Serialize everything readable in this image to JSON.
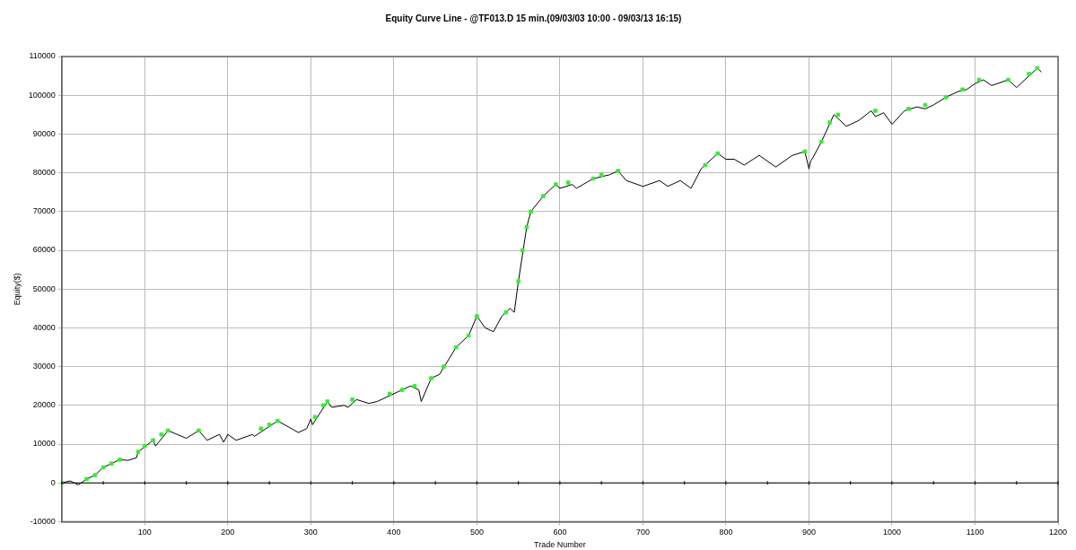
{
  "chart_data": {
    "type": "line",
    "title": "Equity Curve Line - @TF013.D 15 min.(09/03/03 10:00 - 09/03/13 16:15)",
    "xlabel": "Trade Number",
    "ylabel": "Equity($)",
    "xlim": [
      0,
      1200
    ],
    "xticks": [
      100,
      200,
      300,
      400,
      500,
      600,
      700,
      800,
      900,
      1000,
      1100,
      1200
    ],
    "ylim": [
      -10000,
      110000
    ],
    "yticks": [
      -10000,
      0,
      10000,
      20000,
      30000,
      40000,
      50000,
      60000,
      70000,
      80000,
      90000,
      100000,
      110000
    ],
    "grid": true,
    "legend": false,
    "ref_lines": [
      {
        "axis": "y",
        "value": 0,
        "color": "#000000"
      }
    ],
    "series": [
      {
        "color": "#000000",
        "marker": "none",
        "line_style": "solid",
        "x": [
          0,
          10,
          20,
          30,
          40,
          50,
          70,
          80,
          90,
          92,
          110,
          113,
          128,
          150,
          165,
          175,
          190,
          195,
          200,
          210,
          230,
          232,
          260,
          285,
          295,
          300,
          302,
          320,
          325,
          340,
          345,
          355,
          370,
          380,
          400,
          420,
          430,
          433,
          445,
          455,
          475,
          490,
          500,
          510,
          520,
          530,
          540,
          545,
          550,
          560,
          565,
          580,
          595,
          600,
          615,
          620,
          640,
          660,
          670,
          680,
          700,
          720,
          730,
          745,
          758,
          770,
          790,
          800,
          810,
          822,
          840,
          860,
          880,
          895,
          900,
          902,
          905,
          915,
          930,
          945,
          960,
          975,
          980,
          990,
          1000,
          1015,
          1030,
          1040,
          1050,
          1065,
          1080,
          1090,
          1100,
          1110,
          1120,
          1140,
          1145,
          1150,
          1160,
          1175,
          1180
        ],
        "values": [
          0,
          500,
          -500,
          1000,
          2000,
          4000,
          6000,
          5800,
          6500,
          8000,
          11000,
          9500,
          13500,
          11500,
          13500,
          11000,
          12500,
          10500,
          12500,
          11000,
          12500,
          12000,
          16000,
          13000,
          14000,
          16500,
          15000,
          21000,
          19500,
          20000,
          19500,
          21500,
          20500,
          21000,
          23000,
          25000,
          24000,
          21000,
          27000,
          28000,
          35000,
          38000,
          43000,
          40000,
          39000,
          43000,
          45000,
          44000,
          52000,
          66000,
          70000,
          74000,
          77000,
          76000,
          77000,
          76000,
          78500,
          79500,
          80500,
          78000,
          76500,
          78000,
          76500,
          78000,
          76000,
          81000,
          85000,
          83500,
          83500,
          82000,
          84500,
          81500,
          84500,
          85500,
          81000,
          83000,
          84000,
          88000,
          95000,
          92000,
          93500,
          96000,
          94500,
          95500,
          92500,
          96000,
          97000,
          96500,
          97500,
          99500,
          101000,
          101500,
          103000,
          104000,
          102500,
          104000,
          103000,
          102000,
          104000,
          107000,
          106000
        ]
      },
      {
        "type": "scatter",
        "color": "#33ee33",
        "marker": "square",
        "x": [
          0,
          30,
          40,
          50,
          60,
          70,
          92,
          100,
          110,
          120,
          128,
          165,
          240,
          250,
          260,
          305,
          315,
          320,
          350,
          395,
          410,
          425,
          445,
          460,
          475,
          490,
          500,
          535,
          550,
          555,
          560,
          565,
          580,
          595,
          610,
          640,
          650,
          670,
          775,
          790,
          895,
          915,
          925,
          935,
          980,
          1020,
          1040,
          1065,
          1085,
          1105,
          1140,
          1165,
          1175
        ],
        "values": [
          0,
          1000,
          2000,
          4000,
          5000,
          6000,
          8000,
          9500,
          11000,
          12500,
          13500,
          13500,
          14000,
          15000,
          16000,
          17000,
          20000,
          21000,
          21500,
          23000,
          24000,
          25000,
          27000,
          30000,
          35000,
          38000,
          43000,
          44000,
          52000,
          60000,
          66000,
          70000,
          74000,
          77000,
          77500,
          78500,
          79500,
          80500,
          82000,
          85000,
          85500,
          88000,
          93000,
          95000,
          96000,
          96500,
          97500,
          99500,
          101500,
          104000,
          104000,
          105500,
          107000
        ]
      }
    ]
  }
}
